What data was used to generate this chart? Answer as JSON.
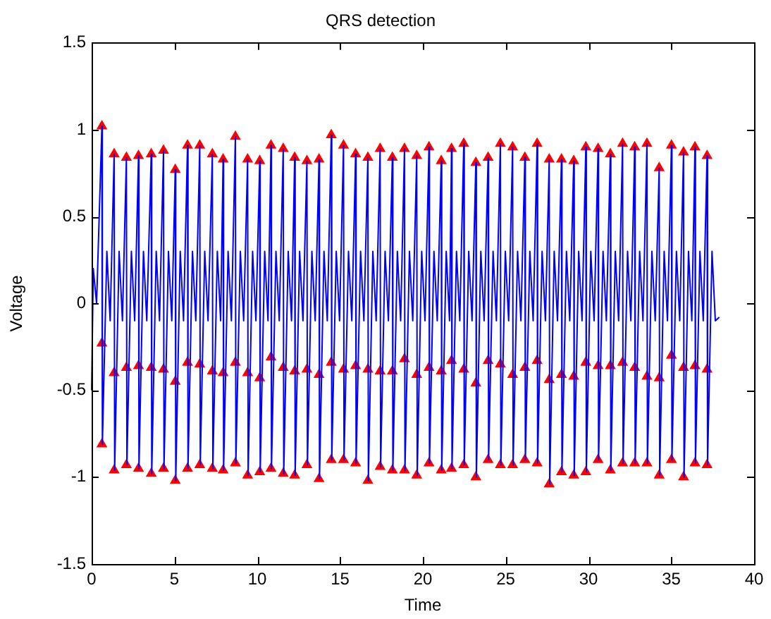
{
  "chart_data": {
    "type": "line",
    "title": "QRS detection",
    "xlabel": "Time",
    "ylabel": "Voltage",
    "xlim": [
      0,
      40
    ],
    "xticks": [
      0,
      5,
      10,
      15,
      20,
      25,
      30,
      35,
      40
    ],
    "ylim": [
      -1.5,
      1.5
    ],
    "yticks": [
      -1.5,
      -1,
      -0.5,
      0,
      0.5,
      1,
      1.5
    ],
    "grid": false,
    "legend": false,
    "line_style": "solid",
    "series": [
      {
        "color": "#0000ff",
        "marker": "none",
        "x": [
          0,
          0.1,
          0.3,
          0.62,
          0.65,
          0.92,
          1.12,
          1.36,
          1.39,
          1.66,
          1.86,
          2.1,
          2.13,
          2.4,
          2.6,
          2.83,
          2.86,
          3.13,
          3.33,
          3.6,
          3.63,
          3.9,
          4.1,
          4.34,
          4.37,
          4.64,
          4.84,
          5.05,
          5.08,
          5.35,
          5.55,
          5.79,
          5.82,
          6.09,
          6.29,
          6.53,
          6.56,
          6.83,
          7.03,
          7.29,
          7.32,
          7.59,
          7.79,
          7.94,
          7.97,
          8.24,
          8.44,
          8.68,
          8.71,
          8.98,
          9.18,
          9.42,
          9.45,
          9.72,
          9.92,
          10.15,
          10.18,
          10.45,
          10.65,
          10.83,
          10.86,
          11.13,
          11.33,
          11.57,
          11.6,
          11.87,
          12.07,
          12.26,
          12.29,
          12.56,
          12.76,
          13,
          13.03,
          13.3,
          13.5,
          13.73,
          13.76,
          14.03,
          14.23,
          14.47,
          14.5,
          14.77,
          14.97,
          15.21,
          15.24,
          15.51,
          15.71,
          15.94,
          15.97,
          16.24,
          16.44,
          16.68,
          16.71,
          16.98,
          17.18,
          17.42,
          17.45,
          17.72,
          17.92,
          18.16,
          18.19,
          18.46,
          18.66,
          18.89,
          18.92,
          19.19,
          19.39,
          19.63,
          19.66,
          19.93,
          20.13,
          20.37,
          20.4,
          20.67,
          20.87,
          21.11,
          21.14,
          21.41,
          21.61,
          21.73,
          21.76,
          22.03,
          22.23,
          22.47,
          22.5,
          22.77,
          22.97,
          23.2,
          23.23,
          23.5,
          23.7,
          23.94,
          23.97,
          24.24,
          24.44,
          24.68,
          24.71,
          24.98,
          25.18,
          25.42,
          25.45,
          25.72,
          25.92,
          26.16,
          26.19,
          26.46,
          26.66,
          26.9,
          26.93,
          27.2,
          27.4,
          27.63,
          27.66,
          27.93,
          28.13,
          28.37,
          28.4,
          28.67,
          28.87,
          29.11,
          29.14,
          29.41,
          29.61,
          29.84,
          29.87,
          30.14,
          30.34,
          30.58,
          30.61,
          30.88,
          31.08,
          31.32,
          31.35,
          31.62,
          31.82,
          32.06,
          32.09,
          32.36,
          32.56,
          32.79,
          32.82,
          33.09,
          33.29,
          33.53,
          33.56,
          33.83,
          34.03,
          34.27,
          34.3,
          34.57,
          34.77,
          35.01,
          35.04,
          35.31,
          35.51,
          35.74,
          35.77,
          36.04,
          36.24,
          36.43,
          36.46,
          36.73,
          36.93,
          37.16,
          37.19,
          37.46,
          37.66,
          37.9
        ],
        "values": [
          -0.5,
          0.2,
          0,
          1.02,
          -0.81,
          0.3,
          -0.1,
          0.86,
          -0.96,
          0.3,
          -0.1,
          0.84,
          -0.93,
          0.3,
          -0.1,
          0.85,
          -0.95,
          0.3,
          -0.1,
          0.86,
          -0.98,
          0.3,
          -0.1,
          0.88,
          -0.95,
          0.3,
          -0.1,
          0.77,
          -1.02,
          0.3,
          -0.1,
          0.91,
          -0.95,
          0.3,
          -0.1,
          0.91,
          -0.93,
          0.3,
          -0.1,
          0.86,
          -0.95,
          0.3,
          -0.1,
          0.83,
          -0.96,
          0.3,
          -0.1,
          0.96,
          -0.92,
          0.3,
          -0.1,
          0.83,
          -0.99,
          0.3,
          -0.1,
          0.82,
          -0.97,
          0.3,
          -0.1,
          0.91,
          -0.95,
          0.3,
          -0.1,
          0.89,
          -0.98,
          0.3,
          -0.1,
          0.84,
          -0.99,
          0.3,
          -0.1,
          0.82,
          -0.93,
          0.3,
          -0.1,
          0.83,
          -1.01,
          0.3,
          -0.1,
          0.97,
          -0.9,
          0.3,
          -0.1,
          0.91,
          -0.9,
          0.3,
          -0.1,
          0.86,
          -0.92,
          0.3,
          -0.1,
          0.84,
          -1.02,
          0.3,
          -0.1,
          0.89,
          -0.94,
          0.3,
          -0.1,
          0.84,
          -0.96,
          0.3,
          -0.1,
          0.89,
          -0.96,
          0.3,
          -0.1,
          0.85,
          -0.99,
          0.3,
          -0.1,
          0.9,
          -0.92,
          0.3,
          -0.1,
          0.82,
          -0.96,
          0.3,
          -0.1,
          0.89,
          -0.95,
          0.3,
          -0.1,
          0.92,
          -0.93,
          0.3,
          -0.1,
          0.81,
          -1,
          0.3,
          -0.1,
          0.84,
          -0.9,
          0.3,
          -0.1,
          0.92,
          -0.93,
          0.3,
          -0.1,
          0.9,
          -0.93,
          0.3,
          -0.1,
          0.84,
          -0.9,
          0.3,
          -0.1,
          0.92,
          -0.92,
          0.3,
          -0.1,
          0.83,
          -1.04,
          0.3,
          -0.1,
          0.83,
          -0.97,
          0.3,
          -0.1,
          0.82,
          -0.99,
          0.3,
          -0.1,
          0.9,
          -0.97,
          0.3,
          -0.1,
          0.89,
          -0.9,
          0.3,
          -0.1,
          0.86,
          -0.96,
          0.3,
          -0.1,
          0.92,
          -0.92,
          0.3,
          -0.1,
          0.9,
          -0.92,
          0.3,
          -0.1,
          0.92,
          -0.92,
          0.3,
          -0.1,
          0.78,
          -0.99,
          0.3,
          -0.1,
          0.91,
          -0.9,
          0.3,
          -0.1,
          0.87,
          -1,
          0.3,
          -0.1,
          0.9,
          -0.92,
          0.3,
          -0.1,
          0.85,
          -0.93,
          0.3,
          -0.1,
          -0.08
        ]
      },
      {
        "type": "scatter",
        "color": "#ff0000",
        "marker": "triangle",
        "x": [
          0.62,
          1.36,
          2.1,
          2.83,
          3.6,
          4.34,
          5.05,
          5.79,
          6.53,
          7.29,
          7.94,
          8.68,
          9.42,
          10.15,
          10.83,
          11.57,
          12.26,
          13,
          13.73,
          14.47,
          15.21,
          15.94,
          16.68,
          17.42,
          18.16,
          18.89,
          19.63,
          20.37,
          21.11,
          21.73,
          22.47,
          23.2,
          23.94,
          24.68,
          25.42,
          26.16,
          26.9,
          27.63,
          28.37,
          29.11,
          29.84,
          30.58,
          31.32,
          32.06,
          32.79,
          33.53,
          34.27,
          35.01,
          35.74,
          36.43,
          37.16
        ],
        "values": [
          1.02,
          0.86,
          0.84,
          0.85,
          0.86,
          0.88,
          0.77,
          0.91,
          0.91,
          0.86,
          0.83,
          0.96,
          0.83,
          0.82,
          0.91,
          0.89,
          0.84,
          0.82,
          0.83,
          0.97,
          0.91,
          0.86,
          0.84,
          0.89,
          0.84,
          0.89,
          0.85,
          0.9,
          0.82,
          0.89,
          0.92,
          0.81,
          0.84,
          0.92,
          0.9,
          0.84,
          0.92,
          0.83,
          0.83,
          0.82,
          0.9,
          0.89,
          0.86,
          0.92,
          0.9,
          0.92,
          0.78,
          0.91,
          0.87,
          0.9,
          0.85
        ]
      },
      {
        "type": "scatter",
        "color": "#ff0000",
        "marker": "triangle",
        "x": [
          0.62,
          1.36,
          2.1,
          2.83,
          3.6,
          4.34,
          5.05,
          5.79,
          6.53,
          7.29,
          7.94,
          8.68,
          9.42,
          10.15,
          10.83,
          11.57,
          12.26,
          13,
          13.73,
          14.47,
          15.21,
          15.94,
          16.68,
          17.42,
          18.16,
          18.89,
          19.63,
          20.37,
          21.11,
          21.73,
          22.47,
          23.2,
          23.94,
          24.68,
          25.42,
          26.16,
          26.9,
          27.63,
          28.37,
          29.11,
          29.84,
          30.58,
          31.32,
          32.06,
          32.79,
          33.53,
          34.27,
          35.01,
          35.74,
          36.43,
          37.16
        ],
        "values": [
          -0.23,
          -0.4,
          -0.37,
          -0.36,
          -0.37,
          -0.38,
          -0.45,
          -0.34,
          -0.35,
          -0.39,
          -0.4,
          -0.34,
          -0.4,
          -0.43,
          -0.31,
          -0.37,
          -0.39,
          -0.38,
          -0.41,
          -0.34,
          -0.38,
          -0.36,
          -0.38,
          -0.39,
          -0.39,
          -0.32,
          -0.41,
          -0.37,
          -0.39,
          -0.33,
          -0.38,
          -0.46,
          -0.33,
          -0.35,
          -0.41,
          -0.37,
          -0.33,
          -0.44,
          -0.41,
          -0.42,
          -0.34,
          -0.36,
          -0.36,
          -0.34,
          -0.37,
          -0.42,
          -0.43,
          -0.3,
          -0.37,
          -0.36,
          -0.38
        ]
      },
      {
        "type": "scatter",
        "color": "#ff0000",
        "marker": "triangle",
        "x": [
          0.62,
          1.36,
          2.1,
          2.83,
          3.6,
          4.34,
          5.05,
          5.79,
          6.53,
          7.29,
          7.94,
          8.68,
          9.42,
          10.15,
          10.83,
          11.57,
          12.26,
          13,
          13.73,
          14.47,
          15.21,
          15.94,
          16.68,
          17.42,
          18.16,
          18.89,
          19.63,
          20.37,
          21.11,
          21.73,
          22.47,
          23.2,
          23.94,
          24.68,
          25.42,
          26.16,
          26.9,
          27.63,
          28.37,
          29.11,
          29.84,
          30.58,
          31.32,
          32.06,
          32.79,
          33.53,
          34.27,
          35.01,
          35.74,
          36.43,
          37.16
        ],
        "values": [
          -0.81,
          -0.96,
          -0.93,
          -0.95,
          -0.98,
          -0.95,
          -1.02,
          -0.95,
          -0.93,
          -0.95,
          -0.96,
          -0.92,
          -0.99,
          -0.97,
          -0.95,
          -0.98,
          -0.99,
          -0.93,
          -1.01,
          -0.9,
          -0.9,
          -0.92,
          -1.02,
          -0.94,
          -0.96,
          -0.96,
          -0.99,
          -0.92,
          -0.96,
          -0.95,
          -0.93,
          -1,
          -0.9,
          -0.93,
          -0.93,
          -0.9,
          -0.92,
          -1.04,
          -0.97,
          -0.99,
          -0.97,
          -0.9,
          -0.96,
          -0.92,
          -0.92,
          -0.92,
          -0.99,
          -0.9,
          -1,
          -0.92,
          -0.93
        ]
      }
    ]
  }
}
